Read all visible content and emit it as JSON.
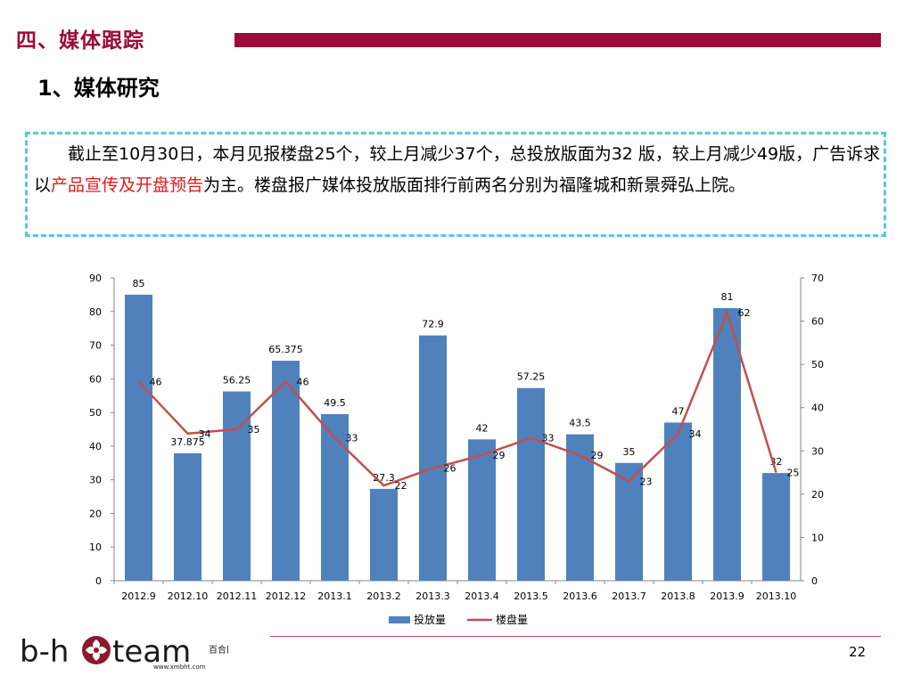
{
  "header": {
    "section_title": "四、媒体跟踪",
    "sub_title": "1、媒体研究"
  },
  "summary": {
    "part1": "截止至10月30日，本月见报楼盘25个，较上月减少37个，总投放版面为32 版，较上月减少49版，广告诉求以",
    "highlight": "产品宣传及开盘预告",
    "part2": "为主。楼盘报广媒体投放版面排行前两名分别为福隆城和新景舜弘上院。"
  },
  "chart_data": {
    "type": "bar",
    "categories": [
      "2012.9",
      "2012.10",
      "2012.11",
      "2012.12",
      "2013.1",
      "2013.2",
      "2013.3",
      "2013.4",
      "2013.5",
      "2013.6",
      "2013.7",
      "2013.8",
      "2013.9",
      "2013.10"
    ],
    "series": [
      {
        "name": "投放量",
        "type": "bar",
        "axis": "left",
        "color": "#4f81bd",
        "values": [
          85,
          37.875,
          56.25,
          65.375,
          49.5,
          27.3,
          72.9,
          42,
          57.25,
          43.5,
          35,
          47,
          81,
          32
        ],
        "labels": [
          "85",
          "37.875",
          "56.25",
          "65.375",
          "49.5",
          "27.3",
          "72.9",
          "42",
          "57.25",
          "43.5",
          "35",
          "47",
          "81",
          "32"
        ]
      },
      {
        "name": "楼盘量",
        "type": "line",
        "axis": "right",
        "color": "#c0504d",
        "values": [
          46,
          34,
          35,
          46,
          33,
          22,
          26,
          29,
          33,
          29,
          23,
          34,
          62,
          25
        ],
        "labels": [
          "46",
          "34",
          "35",
          "46",
          "33",
          "22",
          "26",
          "29",
          "33",
          "29",
          "23",
          "34",
          "62",
          "25"
        ]
      }
    ],
    "y_left": {
      "min": 0,
      "max": 90,
      "step": 10
    },
    "y_right": {
      "min": 0,
      "max": 70,
      "step": 10
    },
    "grid": false,
    "legend_position": "bottom"
  },
  "logo": {
    "text_left": "b-h",
    "text_right": "team",
    "cn_text": "百合田",
    "url": "www.xmbht.com"
  },
  "footer": {
    "page_number": "22"
  }
}
